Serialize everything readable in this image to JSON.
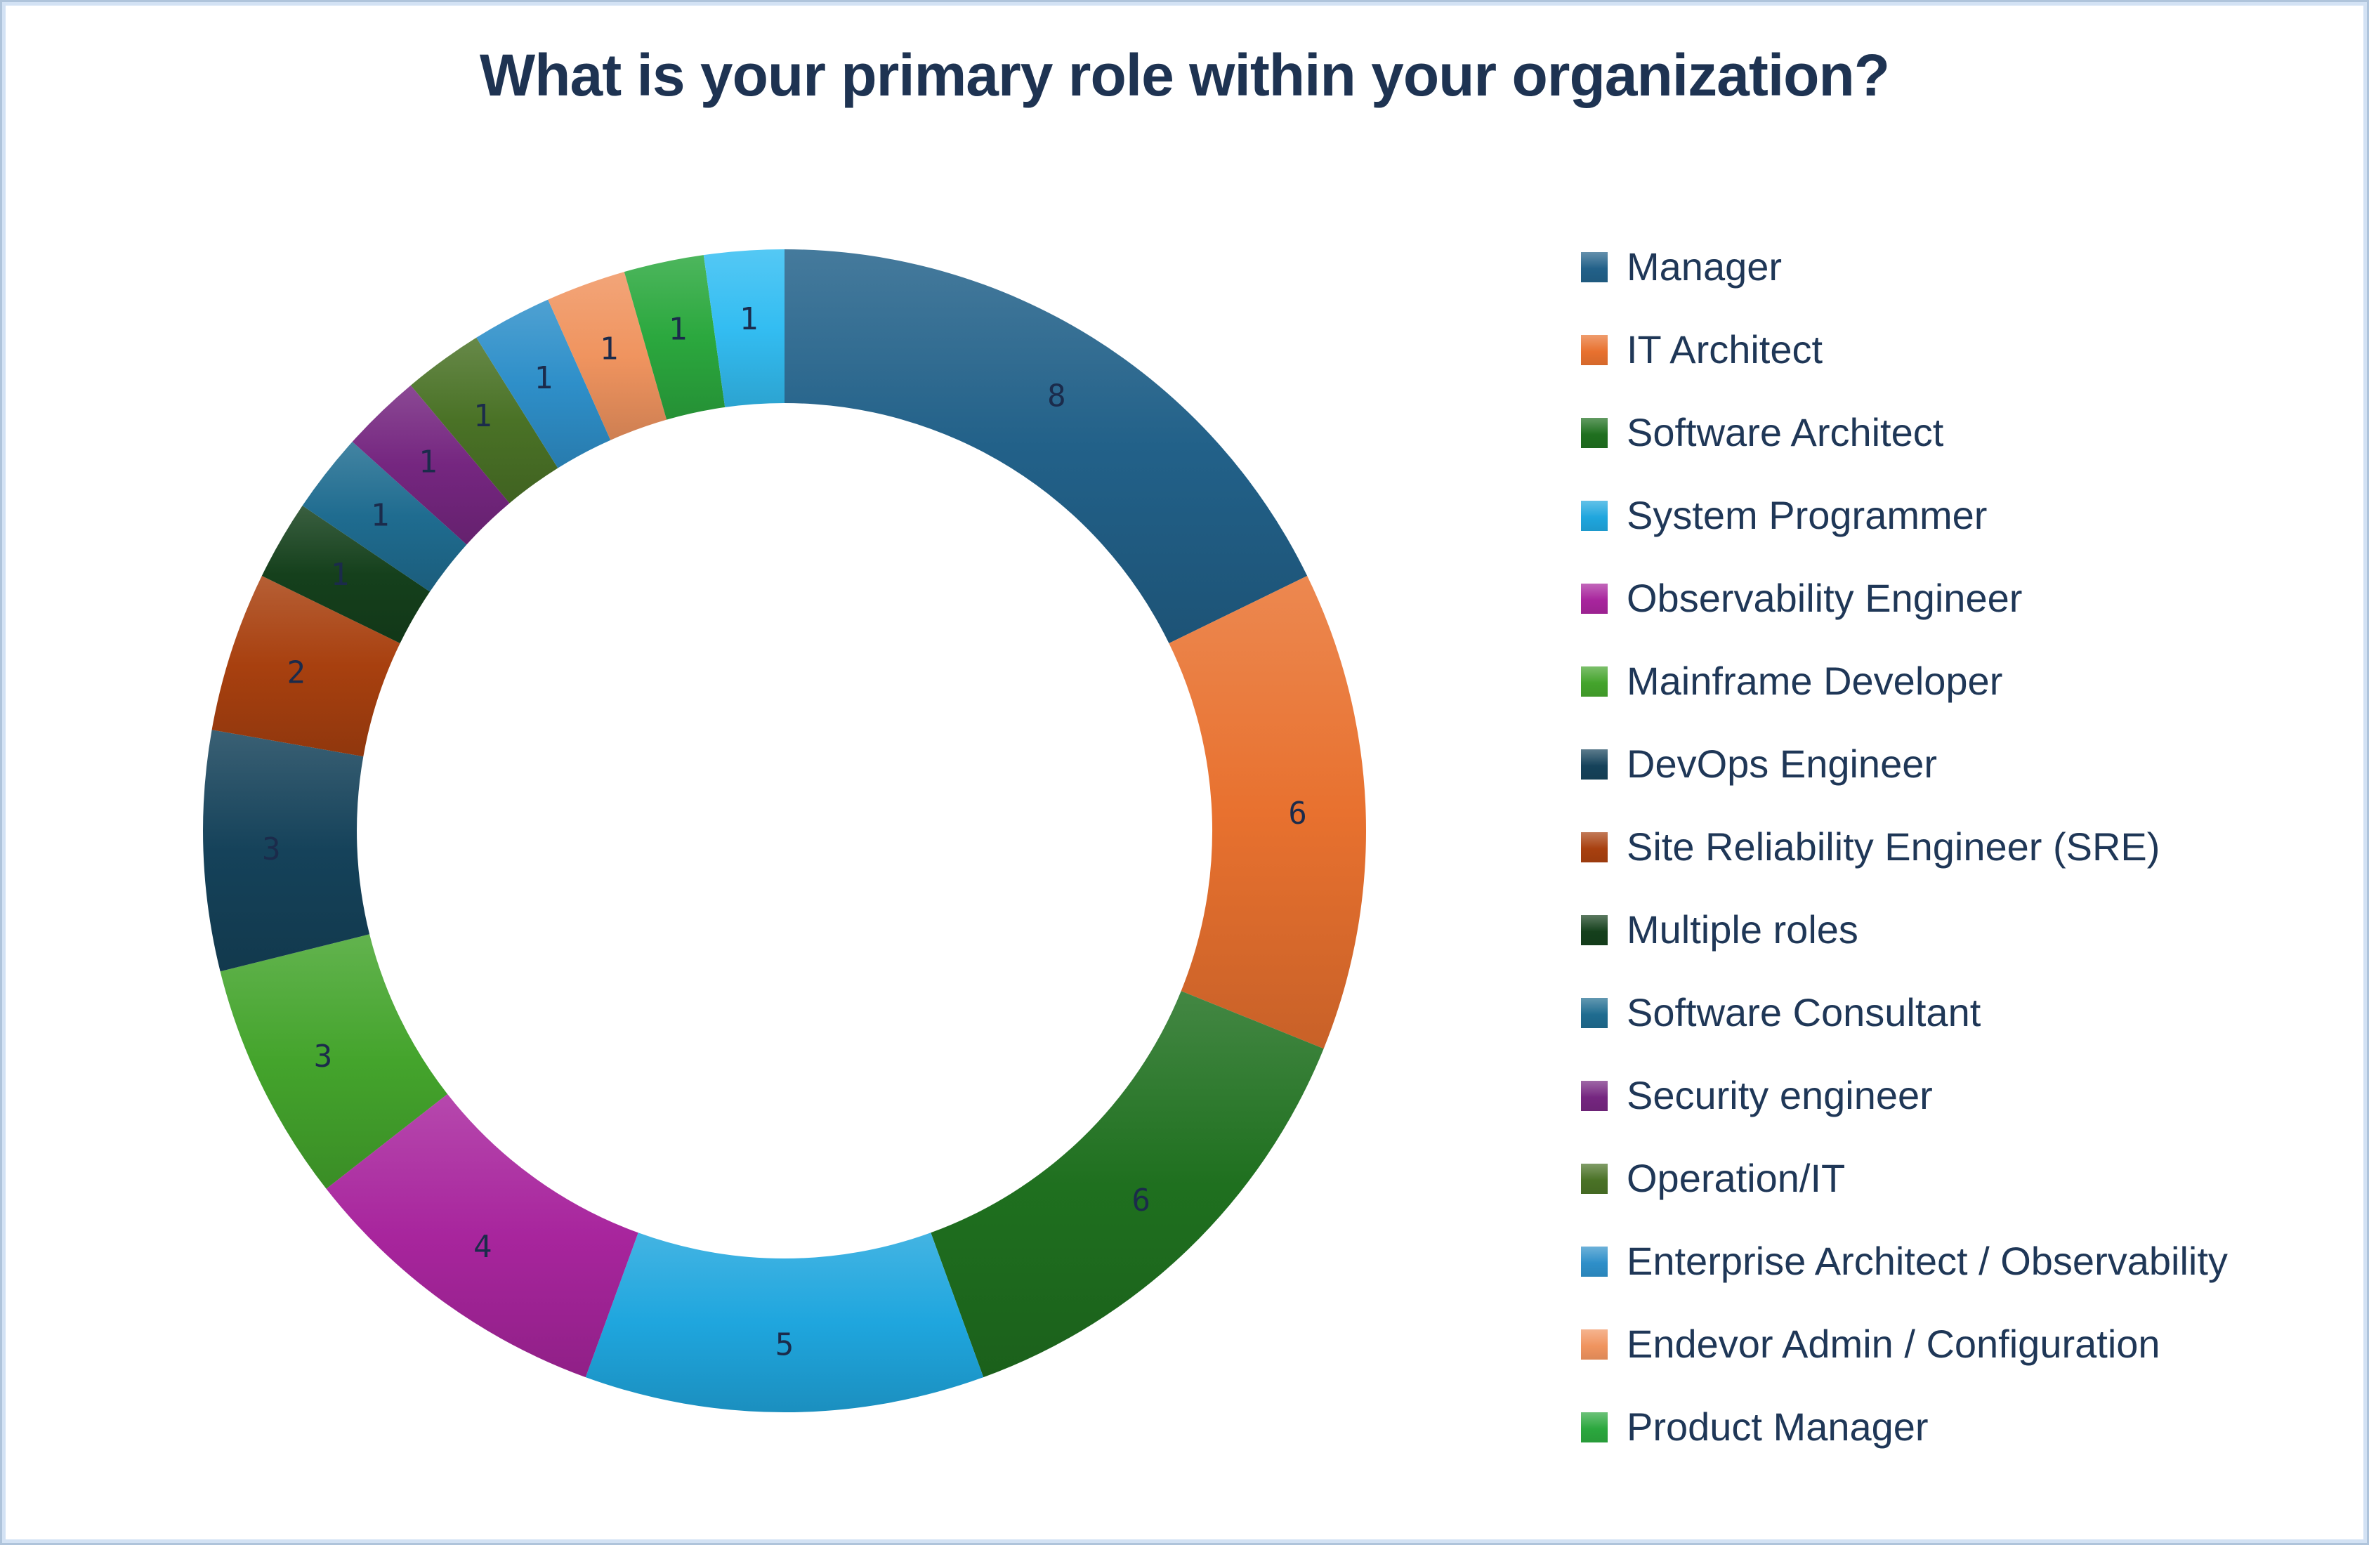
{
  "window": {
    "background": "#FFFFFF",
    "frame_outer_color": "#AFC4DB",
    "frame_inner_color": "#D3E2F4"
  },
  "title": {
    "text": "What is your primary role within your organization?",
    "color": "#1E3352"
  },
  "chart_data": {
    "type": "pie",
    "subtype": "donut",
    "title": "What is your primary role within your organization?",
    "direction": "clockwise",
    "start_angle_deg": 0,
    "donut_hole_ratio": 0.735,
    "total": 45,
    "grid": false,
    "legend_position": "right",
    "legend_text_color": "#1F3757",
    "value_label_color": "#1B2B4B",
    "slices": [
      {
        "label": "Manager",
        "value": 8,
        "color": "#226189",
        "in_legend": true
      },
      {
        "label": "IT Architect",
        "value": 6,
        "color": "#E8712F",
        "in_legend": true
      },
      {
        "label": "Software Architect",
        "value": 6,
        "color": "#1F701F",
        "in_legend": true
      },
      {
        "label": "System Programmer",
        "value": 5,
        "color": "#1FA6DE",
        "in_legend": true
      },
      {
        "label": "Observability Engineer",
        "value": 4,
        "color": "#A8259D",
        "in_legend": true
      },
      {
        "label": "Mainframe Developer",
        "value": 3,
        "color": "#44A42C",
        "in_legend": true
      },
      {
        "label": "DevOps Engineer",
        "value": 3,
        "color": "#15425A",
        "in_legend": true
      },
      {
        "label": "Site Reliability Engineer (SRE)",
        "value": 2,
        "color": "#A8400F",
        "in_legend": true
      },
      {
        "label": "Multiple roles",
        "value": 1,
        "color": "#15401C",
        "in_legend": true
      },
      {
        "label": "Software Consultant",
        "value": 1,
        "color": "#1F6C90",
        "in_legend": true
      },
      {
        "label": "Security engineer",
        "value": 1,
        "color": "#752680",
        "in_legend": true
      },
      {
        "label": "Operation/IT",
        "value": 1,
        "color": "#4A7226",
        "in_legend": true
      },
      {
        "label": "Enterprise Architect / Observability",
        "value": 1,
        "color": "#2E8FC9",
        "in_legend": true
      },
      {
        "label": "Endevor Admin / Configuration",
        "value": 1,
        "color": "#F0945F",
        "in_legend": true
      },
      {
        "label": "Product Manager",
        "value": 1,
        "color": "#2BA83E",
        "in_legend": true
      },
      {
        "label": "",
        "value": 1,
        "color": "#33BDF2",
        "in_legend": false
      }
    ]
  }
}
